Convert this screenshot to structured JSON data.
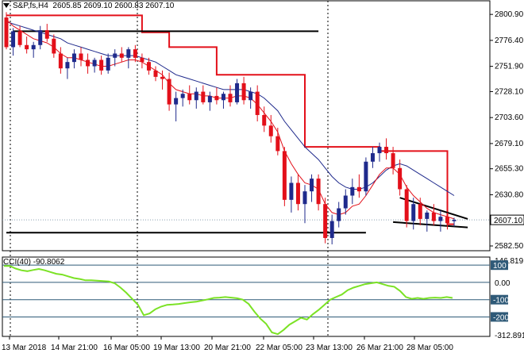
{
  "header": {
    "symbol": "S&P,fs,H4",
    "ohlc": "2605.85 2609.10 2600.83 2607.10"
  },
  "indicator": {
    "label": "CCI(40) -90.8062"
  },
  "colors": {
    "bull": "#1f2a8c",
    "bear": "#e3101a",
    "ma_fast": "#e3101a",
    "ma_slow": "#1f2a8c",
    "trail": "#e3101a",
    "cci": "#7be225",
    "grid": "#c6d2da",
    "level": "#2f5a78",
    "current_tag": "#ffffff"
  },
  "chart_data": [
    {
      "type": "candlestick",
      "title": "",
      "price_axis": {
        "ticks": [
          "2800.90",
          "2776.40",
          "2751.90",
          "2728.10",
          "2703.60",
          "2679.10",
          "2655.30",
          "2630.80",
          "2607.10",
          "2582.50"
        ],
        "min": 2578,
        "max": 2810,
        "current": "2607.10"
      },
      "time_axis": {
        "ticks": [
          "13 Mar 2018",
          "14 Mar 21:00",
          "16 Mar 05:00",
          "19 Mar 13:00",
          "20 Mar 21:00",
          "22 Mar 05:00",
          "23 Mar 13:00",
          "26 Mar 21:00",
          "28 Mar 05:00"
        ]
      },
      "candles": [
        [
          2798,
          2803,
          2768,
          2770
        ],
        [
          2770,
          2788,
          2762,
          2785
        ],
        [
          2785,
          2790,
          2770,
          2772
        ],
        [
          2772,
          2780,
          2764,
          2768
        ],
        [
          2768,
          2775,
          2760,
          2772
        ],
        [
          2772,
          2790,
          2768,
          2786
        ],
        [
          2786,
          2792,
          2775,
          2778
        ],
        [
          2778,
          2782,
          2760,
          2764
        ],
        [
          2764,
          2770,
          2745,
          2750
        ],
        [
          2750,
          2760,
          2740,
          2756
        ],
        [
          2756,
          2768,
          2750,
          2764
        ],
        [
          2764,
          2770,
          2752,
          2758
        ],
        [
          2758,
          2764,
          2745,
          2752
        ],
        [
          2752,
          2760,
          2746,
          2758
        ],
        [
          2758,
          2762,
          2744,
          2748
        ],
        [
          2748,
          2764,
          2745,
          2760
        ],
        [
          2760,
          2768,
          2752,
          2764
        ],
        [
          2764,
          2770,
          2756,
          2760
        ],
        [
          2760,
          2770,
          2750,
          2768
        ],
        [
          2768,
          2772,
          2756,
          2760
        ],
        [
          2760,
          2764,
          2750,
          2756
        ],
        [
          2756,
          2760,
          2744,
          2748
        ],
        [
          2748,
          2752,
          2738,
          2742
        ],
        [
          2742,
          2748,
          2730,
          2740
        ],
        [
          2740,
          2746,
          2710,
          2716
        ],
        [
          2716,
          2728,
          2700,
          2722
        ],
        [
          2722,
          2730,
          2714,
          2726
        ],
        [
          2726,
          2734,
          2716,
          2720
        ],
        [
          2720,
          2732,
          2712,
          2728
        ],
        [
          2728,
          2734,
          2716,
          2718
        ],
        [
          2718,
          2728,
          2710,
          2724
        ],
        [
          2724,
          2732,
          2716,
          2720
        ],
        [
          2720,
          2728,
          2712,
          2726
        ],
        [
          2726,
          2734,
          2714,
          2718
        ],
        [
          2718,
          2740,
          2716,
          2736
        ],
        [
          2736,
          2742,
          2716,
          2720
        ],
        [
          2720,
          2732,
          2712,
          2728
        ],
        [
          2728,
          2734,
          2700,
          2706
        ],
        [
          2706,
          2714,
          2690,
          2696
        ],
        [
          2696,
          2706,
          2680,
          2686
        ],
        [
          2686,
          2694,
          2668,
          2672
        ],
        [
          2672,
          2676,
          2620,
          2626
        ],
        [
          2626,
          2648,
          2614,
          2642
        ],
        [
          2642,
          2650,
          2616,
          2622
        ],
        [
          2622,
          2640,
          2604,
          2634
        ],
        [
          2634,
          2650,
          2624,
          2646
        ],
        [
          2646,
          2650,
          2616,
          2622
        ],
        [
          2622,
          2628,
          2585,
          2590
        ],
        [
          2590,
          2612,
          2584,
          2606
        ],
        [
          2606,
          2624,
          2600,
          2618
        ],
        [
          2618,
          2636,
          2612,
          2630
        ],
        [
          2630,
          2646,
          2622,
          2638
        ],
        [
          2638,
          2650,
          2628,
          2634
        ],
        [
          2634,
          2666,
          2630,
          2662
        ],
        [
          2662,
          2676,
          2656,
          2670
        ],
        [
          2670,
          2680,
          2662,
          2676
        ],
        [
          2676,
          2684,
          2664,
          2670
        ],
        [
          2670,
          2676,
          2650,
          2656
        ],
        [
          2656,
          2664,
          2630,
          2636
        ],
        [
          2636,
          2640,
          2600,
          2606
        ],
        [
          2606,
          2628,
          2598,
          2622
        ],
        [
          2622,
          2628,
          2602,
          2608
        ],
        [
          2608,
          2616,
          2596,
          2614
        ],
        [
          2614,
          2622,
          2602,
          2606
        ],
        [
          2606,
          2616,
          2596,
          2610
        ],
        [
          2610,
          2614,
          2598,
          2604
        ],
        [
          2605.85,
          2609.1,
          2600.83,
          2607.1
        ]
      ],
      "ma_fast": [
        2796,
        2790,
        2786,
        2782,
        2778,
        2776,
        2774,
        2770,
        2764,
        2760,
        2760,
        2758,
        2756,
        2754,
        2752,
        2752,
        2754,
        2756,
        2758,
        2758,
        2756,
        2752,
        2748,
        2744,
        2736,
        2730,
        2728,
        2726,
        2726,
        2724,
        2724,
        2722,
        2722,
        2722,
        2724,
        2724,
        2722,
        2716,
        2708,
        2700,
        2690,
        2672,
        2660,
        2650,
        2642,
        2640,
        2636,
        2622,
        2614,
        2612,
        2614,
        2620,
        2622,
        2630,
        2640,
        2650,
        2656,
        2656,
        2650,
        2638,
        2630,
        2624,
        2618,
        2614,
        2612,
        2610,
        2608
      ],
      "ma_slow": [
        2794,
        2792,
        2790,
        2788,
        2786,
        2784,
        2782,
        2780,
        2778,
        2774,
        2772,
        2770,
        2768,
        2766,
        2764,
        2762,
        2762,
        2762,
        2762,
        2762,
        2760,
        2758,
        2756,
        2752,
        2748,
        2744,
        2742,
        2740,
        2738,
        2736,
        2734,
        2732,
        2730,
        2730,
        2730,
        2730,
        2728,
        2726,
        2722,
        2716,
        2710,
        2700,
        2692,
        2684,
        2676,
        2670,
        2664,
        2656,
        2648,
        2642,
        2638,
        2636,
        2636,
        2638,
        2642,
        2648,
        2654,
        2658,
        2660,
        2658,
        2654,
        2650,
        2646,
        2642,
        2638,
        2634,
        2630
      ],
      "trail": [
        [
          0,
          2800
        ],
        [
          40,
          2800
        ],
        [
          40,
          2784
        ],
        [
          48,
          2784
        ],
        [
          48,
          2770
        ],
        [
          62,
          2770
        ],
        [
          62,
          2744
        ],
        [
          88,
          2744
        ],
        [
          88,
          2676
        ],
        [
          110,
          2676
        ],
        [
          110,
          2672
        ],
        [
          130,
          2672
        ],
        [
          130,
          2603
        ],
        [
          132,
          2603
        ]
      ],
      "lines": [
        {
          "from": [
            2,
            2785
          ],
          "to": [
            92,
            2785
          ]
        },
        {
          "from": [
            0,
            2595
          ],
          "to": [
            106,
            2595
          ]
        },
        {
          "from": [
            116,
            2628
          ],
          "to": [
            136,
            2608
          ]
        },
        {
          "from": [
            114,
            2605
          ],
          "to": [
            136,
            2600
          ]
        }
      ]
    },
    {
      "type": "line",
      "title": "",
      "axis": {
        "ticks": [
          "146.819",
          "100",
          "0.00",
          "-100",
          "-200",
          "-312.8915"
        ],
        "levels": [
          100,
          0,
          -100,
          -200
        ],
        "min": -312.8915,
        "max": 146.819
      },
      "values": [
        95,
        96,
        80,
        70,
        65,
        72,
        78,
        70,
        60,
        50,
        45,
        35,
        25,
        20,
        12,
        12,
        10,
        8,
        5,
        -5,
        -30,
        -60,
        -95,
        -130,
        -190,
        -180,
        -155,
        -140,
        -130,
        -128,
        -125,
        -120,
        -115,
        -112,
        -105,
        -98,
        -90,
        -88,
        -85,
        -88,
        -92,
        -100,
        -125,
        -170,
        -210,
        -240,
        -290,
        -300,
        -275,
        -245,
        -225,
        -205,
        -215,
        -185,
        -160,
        -130,
        -100,
        -85,
        -70,
        -45,
        -30,
        -20,
        -10,
        -5,
        0,
        -10,
        -20,
        -25,
        -50,
        -85,
        -95,
        -90,
        -95,
        -90,
        -88,
        -90,
        -85,
        -90
      ]
    }
  ]
}
